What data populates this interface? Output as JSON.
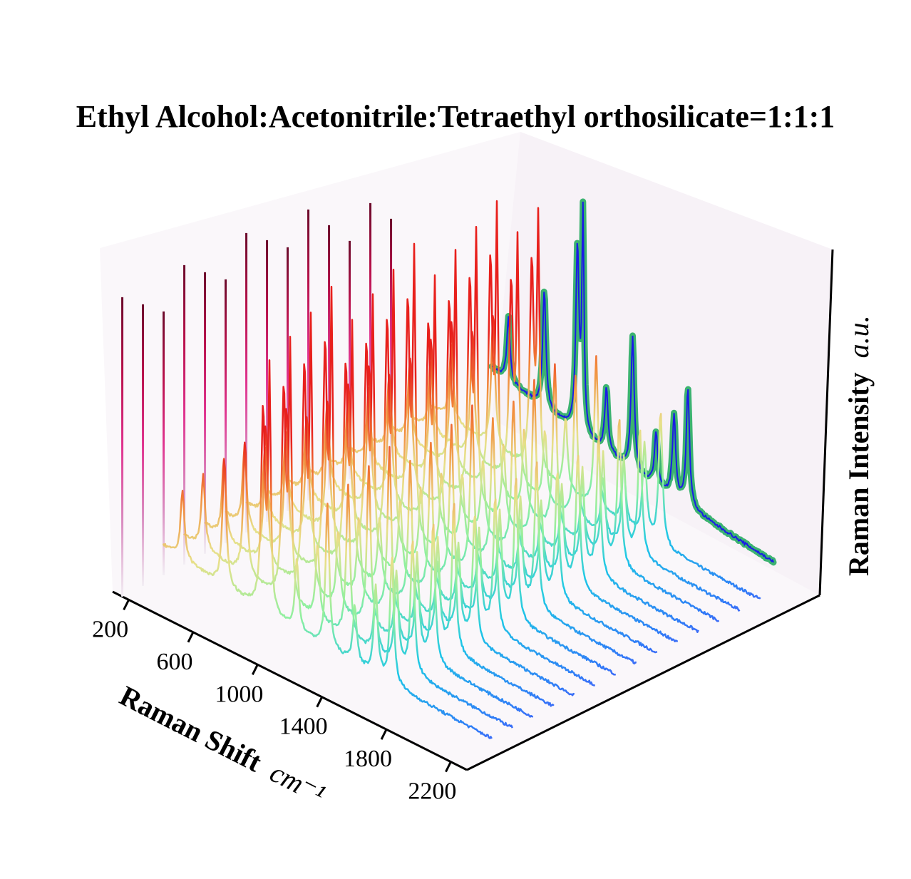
{
  "chart_data": {
    "type": "line",
    "subtype": "3d-waterfall",
    "title": "Ethyl Alcohol:Acetonitrile:Tetraethyl orthosilicate=1:1:1",
    "xlabel": "Raman Shift",
    "xlabel_unit": "cm⁻¹",
    "zlabel": "Raman Intensity",
    "zlabel_unit": "a.u.",
    "x_ticks": [
      "200",
      "600",
      "1000",
      "1400",
      "1800",
      "2200"
    ],
    "xlim": [
      100,
      2300
    ],
    "series_count": 14,
    "spectrum_peaks": [
      {
        "shift": 380,
        "height": 0.3
      },
      {
        "shift": 640,
        "height": 0.55
      },
      {
        "shift": 880,
        "height": 0.85
      },
      {
        "shift": 920,
        "height": 1.0
      },
      {
        "shift": 1090,
        "height": 0.3
      },
      {
        "shift": 1280,
        "height": 0.62
      },
      {
        "shift": 1450,
        "height": 0.25
      },
      {
        "shift": 1580,
        "height": 0.38
      },
      {
        "shift": 1680,
        "height": 0.55
      }
    ],
    "colormap": [
      "#7b2ff7",
      "#2f7af7",
      "#1ec8e6",
      "#8ef0a0",
      "#e8e08a",
      "#f28c3c",
      "#e8201c"
    ],
    "pane_color": "#f9f6f9",
    "projection_colors": {
      "fill": "#3cb371",
      "line": "#1a1ae6"
    },
    "side_bars_colormap": [
      "#f2eef4",
      "#d98cc0",
      "#e0338f",
      "#b8104a",
      "#6b0a2a"
    ],
    "grid": false
  }
}
